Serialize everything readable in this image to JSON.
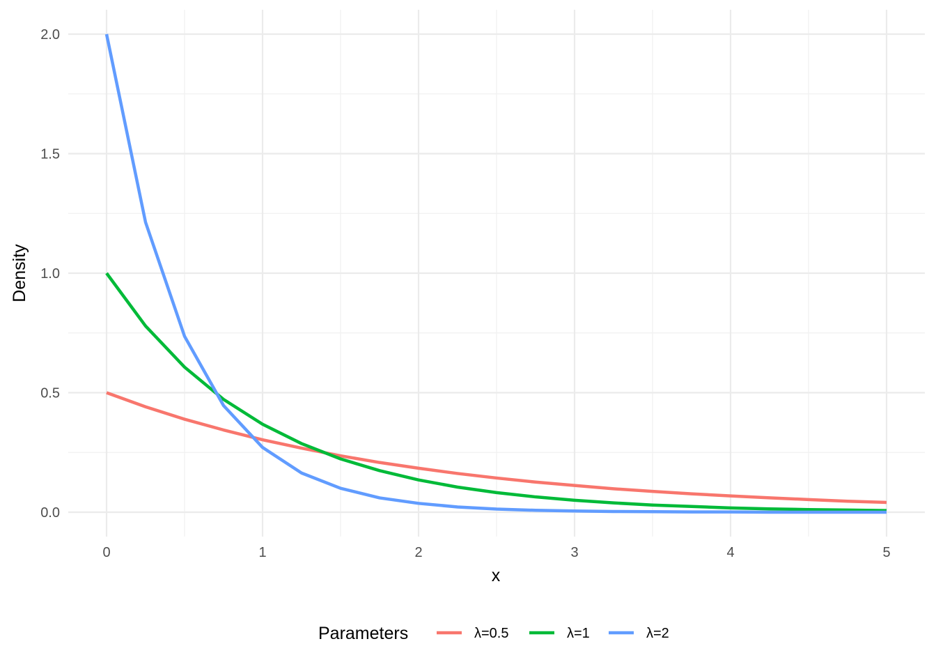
{
  "chart_data": {
    "type": "line",
    "xlabel": "x",
    "ylabel": "Density",
    "xlim": [
      0,
      5
    ],
    "ylim": [
      0,
      2
    ],
    "xticks": [
      0,
      1,
      2,
      3,
      4,
      5
    ],
    "xtick_labels": [
      "0",
      "1",
      "2",
      "3",
      "4",
      "5"
    ],
    "yticks": [
      0,
      0.5,
      1,
      1.5,
      2
    ],
    "ytick_labels": [
      "0.0",
      "0.5",
      "1.0",
      "1.5",
      "2.0"
    ],
    "grid": true,
    "legend": {
      "title": "Parameters",
      "position": "bottom"
    },
    "x": [
      0,
      0.25,
      0.5,
      0.75,
      1,
      1.25,
      1.5,
      1.75,
      2,
      2.25,
      2.5,
      2.75,
      3,
      3.25,
      3.5,
      3.75,
      4,
      4.25,
      4.5,
      4.75,
      5
    ],
    "series": [
      {
        "name": "λ=0.5",
        "color": "#F8766D",
        "values": [
          0.5,
          0.441,
          0.389,
          0.344,
          0.303,
          0.268,
          0.236,
          0.208,
          0.184,
          0.162,
          0.143,
          0.126,
          0.112,
          0.098,
          0.087,
          0.077,
          0.068,
          0.06,
          0.053,
          0.046,
          0.041
        ]
      },
      {
        "name": "λ=1",
        "color": "#00BA38",
        "values": [
          1.0,
          0.779,
          0.607,
          0.472,
          0.368,
          0.287,
          0.223,
          0.174,
          0.135,
          0.105,
          0.082,
          0.064,
          0.05,
          0.039,
          0.03,
          0.024,
          0.018,
          0.014,
          0.011,
          0.009,
          0.007
        ]
      },
      {
        "name": "λ=2",
        "color": "#619CFF",
        "values": [
          2.0,
          1.213,
          0.736,
          0.446,
          0.271,
          0.164,
          0.1,
          0.06,
          0.037,
          0.022,
          0.013,
          0.008,
          0.005,
          0.003,
          0.002,
          0.001,
          0.001,
          0.0,
          0.0,
          0.0,
          0.0
        ]
      }
    ]
  }
}
